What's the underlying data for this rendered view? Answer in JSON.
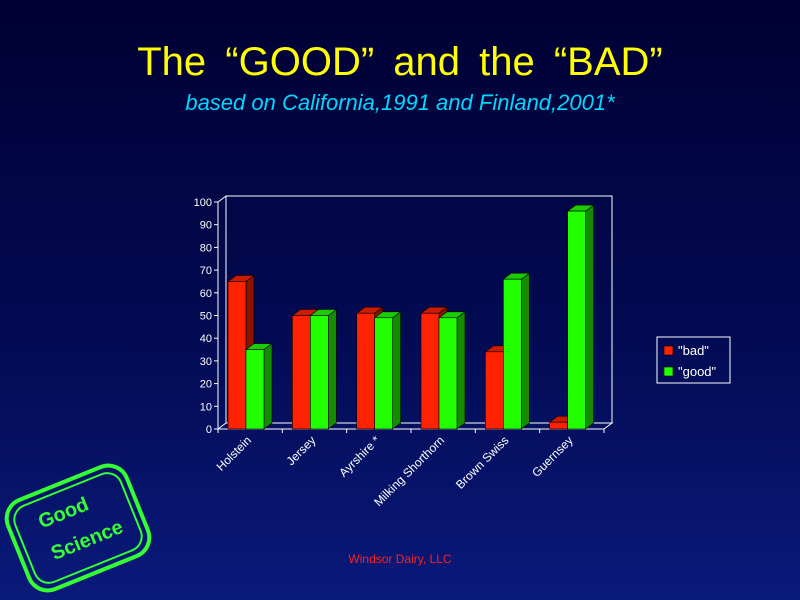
{
  "slide": {
    "title": "The “GOOD” and the “BAD”",
    "subtitle": "based on California,1991 and Finland,2001*",
    "footer": "Windsor Dairy, LLC",
    "stamp": {
      "line1": "Good",
      "line2": "Science",
      "color": "#33ff33"
    }
  },
  "chart_data": {
    "type": "bar",
    "categories": [
      "Holstein",
      "Jersey",
      "Ayrshire *",
      "Milking Shorthorn",
      "Brown Swiss",
      "Guernsey"
    ],
    "series": [
      {
        "name": "\"bad\"",
        "values": [
          65,
          50,
          51,
          51,
          34,
          3
        ],
        "color": "#ff2200"
      },
      {
        "name": "\"good\"",
        "values": [
          35,
          50,
          49,
          49,
          66,
          96
        ],
        "color": "#22ff00"
      }
    ],
    "title": "",
    "xlabel": "",
    "ylabel": "",
    "ylim": [
      0,
      100
    ],
    "yticks": [
      0,
      10,
      20,
      30,
      40,
      50,
      60,
      70,
      80,
      90,
      100
    ],
    "grid": false,
    "legend": "right",
    "three_d": true
  }
}
